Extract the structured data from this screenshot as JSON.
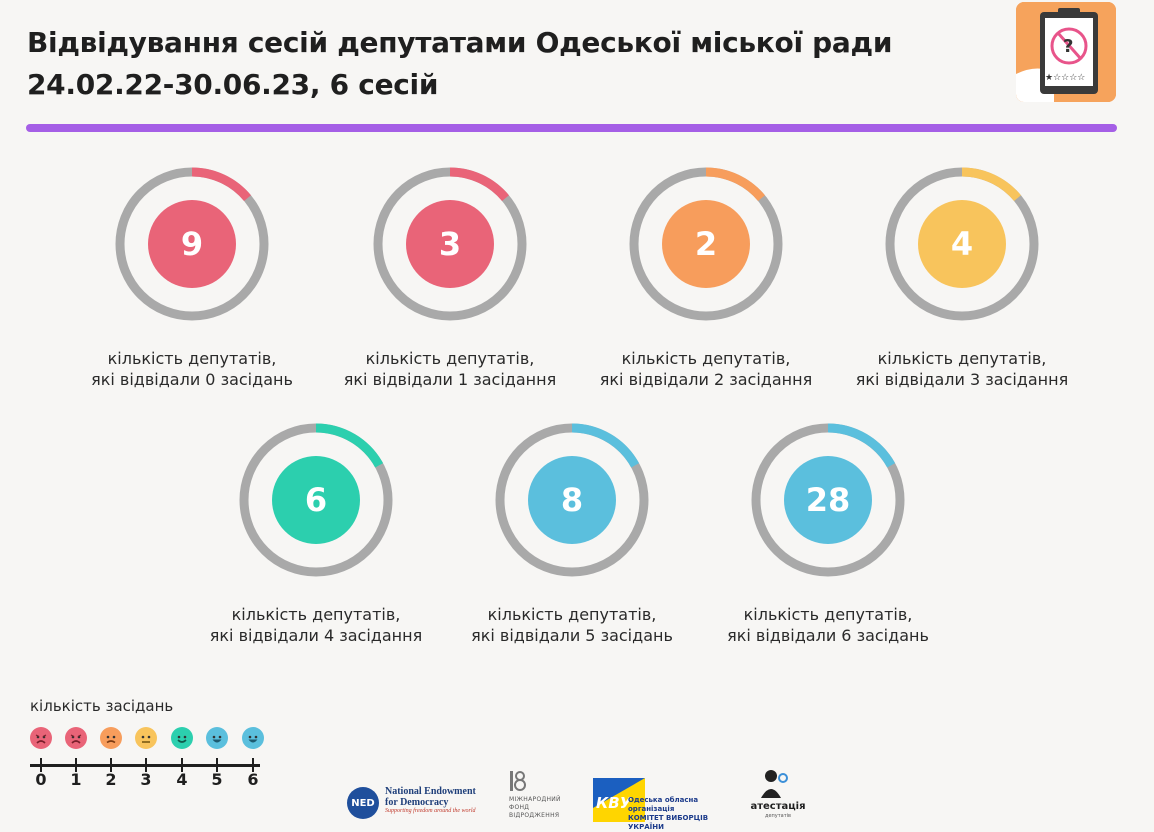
{
  "header": {
    "title_line1": "Відвідування сесій депутатами Одеської міської ради",
    "title_line2": "24.02.22-30.06.23, 6 сесій"
  },
  "colors": {
    "accent_bar": "#a55fe6",
    "ring_gray": "#a9a9a9",
    "red": "#e96478",
    "orange": "#f79d5c",
    "yellow": "#f8c45c",
    "green": "#2ccfae",
    "blue": "#5bbfdd"
  },
  "tiles": [
    {
      "value": "9",
      "caption_line1": "кількість депутатів,",
      "caption_line2": "які відвідали 0 засідань",
      "color": "#e96478",
      "share": 0.14
    },
    {
      "value": "3",
      "caption_line1": "кількість депутатів,",
      "caption_line2": "які відвідали 1 засідання",
      "color": "#e96478",
      "share": 0.14
    },
    {
      "value": "2",
      "caption_line1": "кількість депутатів,",
      "caption_line2": "які відвідали 2 засідання",
      "color": "#f79d5c",
      "share": 0.14
    },
    {
      "value": "4",
      "caption_line1": "кількість депутатів,",
      "caption_line2": "які відвідали 3 засідання",
      "color": "#f8c45c",
      "share": 0.14
    },
    {
      "value": "6",
      "caption_line1": "кількість депутатів,",
      "caption_line2": "які відвідали 4 засідання",
      "color": "#2ccfae",
      "share": 0.17
    },
    {
      "value": "8",
      "caption_line1": "кількість депутатів,",
      "caption_line2": "які відвідали 5 засідань",
      "color": "#5bbfdd",
      "share": 0.17
    },
    {
      "value": "28",
      "caption_line1": "кількість депутатів,",
      "caption_line2": "які відвідали 6 засідань",
      "color": "#5bbfdd",
      "share": 0.17
    }
  ],
  "legend": {
    "title": "кількість засідань",
    "ticks": [
      "0",
      "1",
      "2",
      "3",
      "4",
      "5",
      "6"
    ],
    "face_colors": [
      "#e96478",
      "#e96478",
      "#f79d5c",
      "#f8c45c",
      "#2ccfae",
      "#5bbfdd",
      "#5bbfdd"
    ],
    "face_icons": [
      "angry-face-icon",
      "angry-face-icon",
      "frown-face-icon",
      "neutral-face-icon",
      "smile-face-icon",
      "happy-face-icon",
      "happy-face-icon"
    ]
  },
  "partners": {
    "ned_initials": "NED",
    "ned_name_line1": "National Endowment",
    "ned_name_line2": "for Democracy",
    "ned_tagline": "Supporting freedom around the world",
    "irf_line1": "МІЖНАРОДНИЙ",
    "irf_line2": "ФОНД",
    "irf_line3": "ВІДРОДЖЕННЯ",
    "kvu_line1": "Одеська обласна організація",
    "kvu_line2": "КОМІТЕТ ВИБОРЦІВ УКРАЇНИ",
    "att_name": "атестація",
    "att_sub": "депутатів"
  }
}
